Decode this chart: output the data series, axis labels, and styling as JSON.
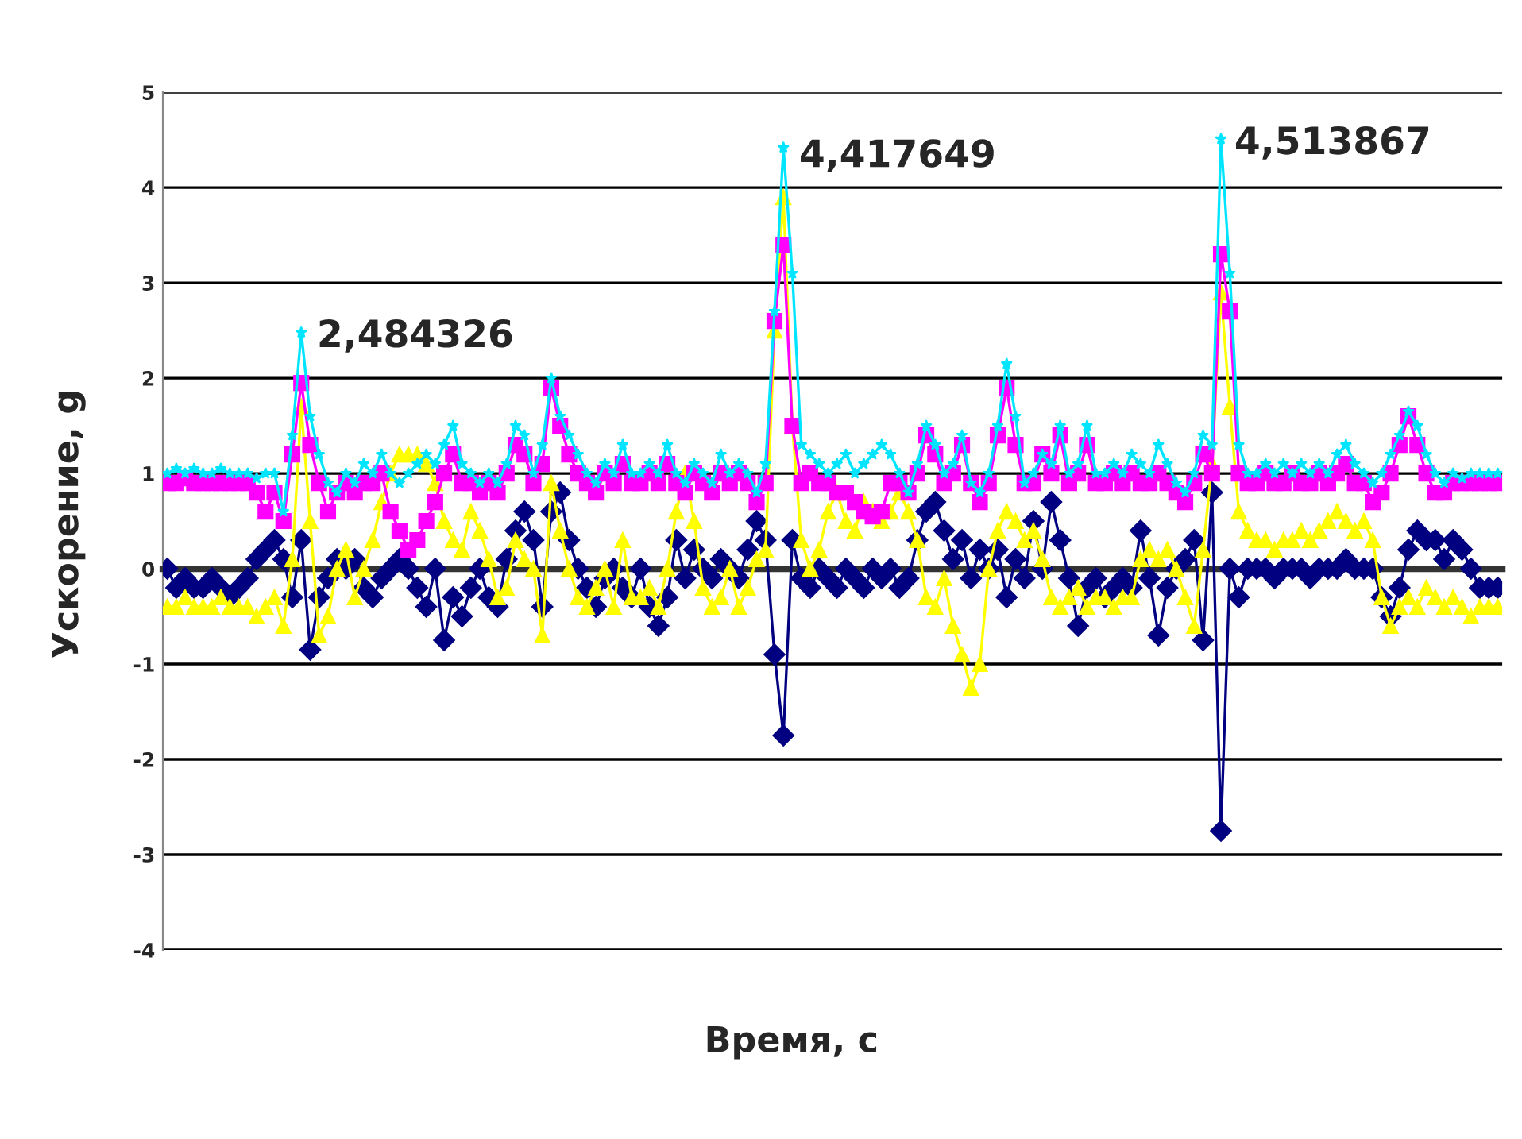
{
  "chart_data": {
    "type": "line",
    "xlabel": "Время, с",
    "ylabel": "Ускорение, g",
    "categories": [
      null,
      null,
      null,
      null,
      null,
      null,
      null,
      null,
      null,
      null,
      null,
      null,
      null,
      null,
      null,
      null,
      null,
      null,
      null,
      null,
      null,
      null,
      null,
      null,
      null,
      null,
      null,
      null,
      null,
      null,
      null,
      null,
      null,
      null,
      null,
      null,
      null,
      null,
      null,
      null,
      null,
      null,
      null,
      null,
      null,
      null,
      null,
      null,
      null,
      null,
      null,
      null,
      null,
      null,
      null,
      null,
      null,
      null,
      null,
      null,
      null,
      null,
      null,
      null,
      null,
      null,
      null,
      null,
      null,
      null,
      null,
      null,
      null,
      null,
      null,
      null,
      null,
      null,
      null,
      null,
      null,
      null,
      null,
      null,
      null,
      null,
      null,
      null,
      null,
      null,
      null,
      null,
      null,
      null,
      null,
      null,
      null,
      null,
      null,
      null,
      null,
      null,
      null,
      null,
      null,
      null,
      null,
      null,
      null,
      null,
      null,
      null,
      null,
      null,
      null,
      null,
      null,
      null,
      null,
      null,
      null,
      null,
      null,
      null,
      null,
      null,
      null,
      null,
      null,
      null,
      null,
      null,
      null,
      null,
      null,
      null,
      null,
      null,
      null,
      null,
      null,
      null,
      null,
      null,
      null,
      null,
      null,
      null,
      null,
      null
    ],
    "series": [
      {
        "color": "#00e5ff",
        "marker": "star",
        "values": [
          1.0,
          1.05,
          1.0,
          1.05,
          1.0,
          1.0,
          1.05,
          1.0,
          1.0,
          1.0,
          0.95,
          1.0,
          1.0,
          0.6,
          1.4,
          2.48,
          1.6,
          1.2,
          0.9,
          0.8,
          1.0,
          0.9,
          1.1,
          1.0,
          1.2,
          1.0,
          0.9,
          1.0,
          1.1,
          1.2,
          1.1,
          1.3,
          1.5,
          1.1,
          1.0,
          0.9,
          1.0,
          0.9,
          1.1,
          1.5,
          1.4,
          1.0,
          1.3,
          2.0,
          1.6,
          1.4,
          1.2,
          1.0,
          0.9,
          1.1,
          1.0,
          1.3,
          1.0,
          1.0,
          1.1,
          1.0,
          1.3,
          1.0,
          0.9,
          1.1,
          1.0,
          0.9,
          1.2,
          1.0,
          1.1,
          1.0,
          0.8,
          1.1,
          2.7,
          4.42,
          3.1,
          1.3,
          1.2,
          1.1,
          1.0,
          1.1,
          1.2,
          1.0,
          1.1,
          1.2,
          1.3,
          1.2,
          1.0,
          0.8,
          1.1,
          1.5,
          1.3,
          1.0,
          1.1,
          1.4,
          0.9,
          0.8,
          1.0,
          1.5,
          2.15,
          1.6,
          0.9,
          1.0,
          1.2,
          1.1,
          1.5,
          1.0,
          1.1,
          1.5,
          1.0,
          1.0,
          1.1,
          1.0,
          1.2,
          1.1,
          1.0,
          1.3,
          1.1,
          0.9,
          0.8,
          1.0,
          1.4,
          1.3,
          4.51,
          3.1,
          1.3,
          1.0,
          1.0,
          1.1,
          1.0,
          1.1,
          1.0,
          1.1,
          1.0,
          1.1,
          1.0,
          1.2,
          1.3,
          1.1,
          1.0,
          0.9,
          1.0,
          1.2,
          1.4,
          1.65,
          1.5,
          1.2,
          1.0,
          0.9,
          1.0,
          0.95,
          1.0,
          1.0,
          1.0,
          1.0
        ]
      },
      {
        "color": "#ff00ff",
        "marker": "square",
        "values": [
          0.9,
          0.9,
          0.95,
          0.9,
          0.9,
          0.9,
          0.9,
          0.9,
          0.9,
          0.9,
          0.8,
          0.6,
          0.8,
          0.5,
          1.2,
          1.95,
          1.3,
          0.9,
          0.6,
          0.8,
          0.9,
          0.8,
          0.9,
          0.9,
          1.0,
          0.6,
          0.4,
          0.2,
          0.3,
          0.5,
          0.7,
          1.0,
          1.2,
          0.9,
          0.9,
          0.8,
          0.9,
          0.8,
          1.0,
          1.3,
          1.2,
          0.9,
          1.1,
          1.9,
          1.5,
          1.2,
          1.0,
          0.9,
          0.8,
          1.0,
          0.9,
          1.1,
          0.9,
          0.9,
          1.0,
          0.9,
          1.1,
          0.9,
          0.8,
          1.0,
          0.9,
          0.8,
          1.0,
          0.9,
          1.0,
          0.9,
          0.7,
          0.9,
          2.6,
          3.4,
          1.5,
          0.9,
          1.0,
          0.9,
          0.9,
          0.8,
          0.8,
          0.7,
          0.6,
          0.55,
          0.6,
          0.9,
          0.9,
          0.8,
          1.0,
          1.4,
          1.2,
          0.9,
          1.0,
          1.3,
          0.9,
          0.7,
          0.9,
          1.4,
          1.9,
          1.3,
          0.9,
          0.9,
          1.2,
          1.0,
          1.4,
          0.9,
          1.0,
          1.3,
          0.9,
          0.9,
          1.0,
          0.9,
          1.0,
          0.9,
          0.9,
          1.0,
          0.9,
          0.8,
          0.7,
          0.9,
          1.2,
          1.0,
          3.3,
          2.7,
          1.0,
          0.9,
          0.9,
          1.0,
          0.9,
          0.9,
          1.0,
          0.9,
          0.9,
          1.0,
          0.9,
          1.0,
          1.1,
          0.9,
          0.9,
          0.7,
          0.8,
          1.0,
          1.3,
          1.6,
          1.3,
          1.0,
          0.8,
          0.8,
          0.9,
          0.9,
          0.9,
          0.9,
          0.9,
          0.9
        ]
      },
      {
        "color": "#ffff00",
        "marker": "triangle",
        "values": [
          -0.4,
          -0.4,
          -0.3,
          -0.4,
          -0.4,
          -0.4,
          -0.3,
          -0.4,
          -0.4,
          -0.4,
          -0.5,
          -0.4,
          -0.3,
          -0.6,
          0.1,
          1.7,
          0.5,
          -0.7,
          -0.5,
          0.0,
          0.2,
          -0.3,
          0.0,
          0.3,
          0.7,
          1.0,
          1.2,
          1.2,
          1.2,
          1.1,
          0.9,
          0.5,
          0.3,
          0.2,
          0.6,
          0.4,
          0.1,
          -0.3,
          -0.2,
          0.3,
          0.1,
          0.0,
          -0.7,
          0.9,
          0.4,
          0.0,
          -0.3,
          -0.4,
          -0.2,
          0.0,
          -0.4,
          0.3,
          -0.3,
          -0.3,
          -0.2,
          -0.4,
          0.0,
          0.6,
          1.0,
          0.5,
          -0.2,
          -0.4,
          -0.3,
          0.0,
          -0.4,
          -0.2,
          0.1,
          0.2,
          2.5,
          3.9,
          1.5,
          0.3,
          0.0,
          0.2,
          0.6,
          0.8,
          0.5,
          0.4,
          0.7,
          0.6,
          0.5,
          0.6,
          0.8,
          0.6,
          0.3,
          -0.3,
          -0.4,
          -0.1,
          -0.6,
          -0.9,
          -1.25,
          -1.0,
          0.0,
          0.4,
          0.6,
          0.5,
          0.3,
          0.4,
          0.1,
          -0.3,
          -0.4,
          -0.3,
          -0.2,
          -0.4,
          -0.3,
          -0.3,
          -0.4,
          -0.3,
          -0.3,
          0.1,
          0.2,
          0.1,
          0.2,
          0.0,
          -0.3,
          -0.6,
          0.2,
          1.1,
          2.9,
          1.7,
          0.6,
          0.4,
          0.3,
          0.3,
          0.2,
          0.3,
          0.3,
          0.4,
          0.3,
          0.4,
          0.5,
          0.6,
          0.5,
          0.4,
          0.5,
          0.3,
          -0.3,
          -0.6,
          -0.4,
          -0.3,
          -0.4,
          -0.2,
          -0.3,
          -0.4,
          -0.3,
          -0.4,
          -0.5,
          -0.4,
          -0.4,
          -0.4
        ]
      },
      {
        "color": "#000080",
        "marker": "diamond",
        "values": [
          0.0,
          -0.2,
          -0.1,
          -0.2,
          -0.2,
          -0.1,
          -0.2,
          -0.3,
          -0.2,
          -0.1,
          0.1,
          0.2,
          0.3,
          0.1,
          -0.3,
          0.3,
          -0.85,
          -0.3,
          -0.1,
          0.1,
          0.0,
          0.1,
          -0.2,
          -0.3,
          -0.1,
          0.0,
          0.1,
          0.0,
          -0.2,
          -0.4,
          0.0,
          -0.75,
          -0.3,
          -0.5,
          -0.2,
          0.0,
          -0.3,
          -0.4,
          0.1,
          0.4,
          0.6,
          0.3,
          -0.4,
          0.6,
          0.8,
          0.3,
          0.0,
          -0.2,
          -0.4,
          -0.1,
          0.0,
          -0.2,
          -0.3,
          0.0,
          -0.4,
          -0.6,
          -0.3,
          0.3,
          -0.1,
          0.2,
          0.0,
          -0.1,
          0.1,
          0.0,
          -0.1,
          0.2,
          0.5,
          0.3,
          -0.9,
          -1.75,
          0.3,
          -0.1,
          -0.2,
          0.0,
          -0.1,
          -0.2,
          0.0,
          -0.1,
          -0.2,
          0.0,
          -0.1,
          0.0,
          -0.2,
          -0.1,
          0.3,
          0.6,
          0.7,
          0.4,
          0.1,
          0.3,
          -0.1,
          0.2,
          0.0,
          0.2,
          -0.3,
          0.1,
          -0.1,
          0.5,
          0.0,
          0.7,
          0.3,
          -0.1,
          -0.6,
          -0.2,
          -0.1,
          -0.3,
          -0.2,
          -0.1,
          -0.2,
          0.4,
          -0.1,
          -0.7,
          -0.2,
          0.0,
          0.1,
          0.3,
          -0.75,
          0.8,
          -2.75,
          0.0,
          -0.3,
          0.0,
          0.0,
          0.0,
          -0.1,
          0.0,
          0.0,
          0.0,
          -0.1,
          0.0,
          0.0,
          0.0,
          0.1,
          0.0,
          0.0,
          0.0,
          -0.3,
          -0.5,
          -0.2,
          0.2,
          0.4,
          0.3,
          0.3,
          0.1,
          0.3,
          0.2,
          0.0,
          -0.2,
          -0.2,
          -0.2
        ]
      }
    ],
    "annotations": [
      "2,484326",
      "4,417649",
      "4,513867"
    ],
    "ylim": [
      -4,
      5
    ],
    "yticks": [
      -4,
      -3,
      -2,
      -1,
      0,
      1,
      2,
      3,
      4,
      5
    ],
    "grid": "y",
    "tick_labels": "y",
    "legend": false
  }
}
